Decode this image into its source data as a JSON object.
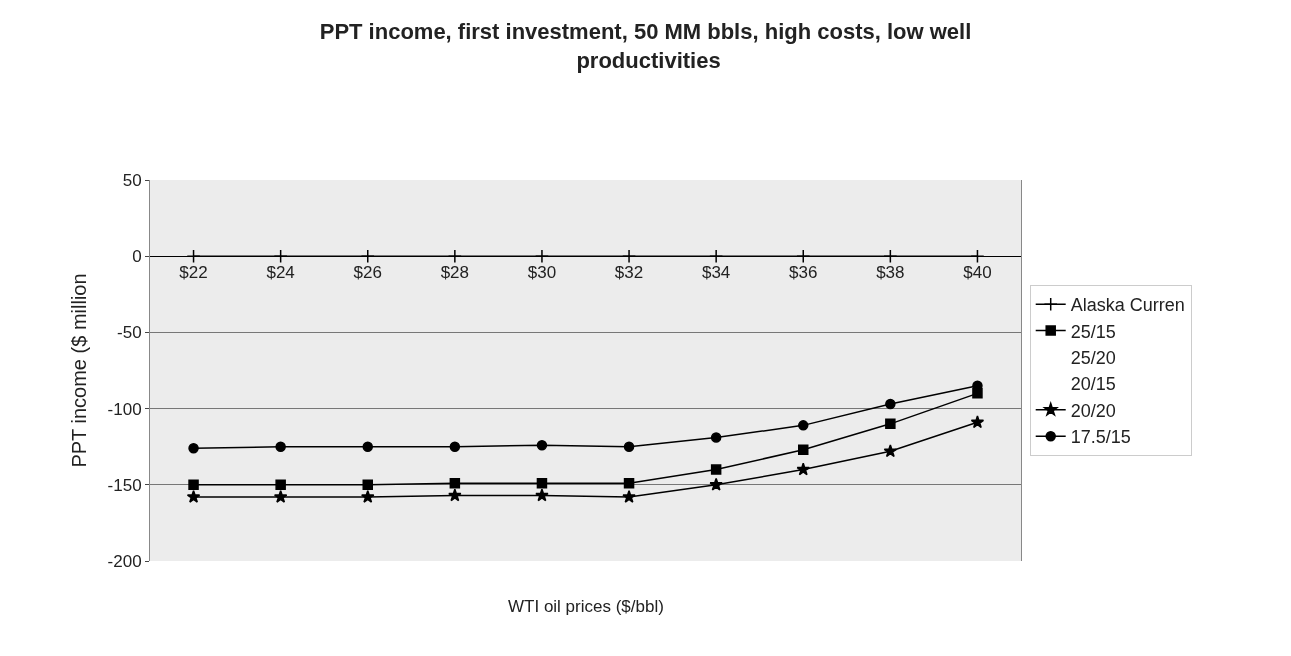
{
  "chart_data": {
    "type": "line",
    "title": "PPT income, first investment, 50 MM bbls, high costs, low well productivities",
    "xlabel": "WTI oil prices ($/bbl)",
    "ylabel": "PPT income ($ million",
    "categories": [
      "$22",
      "$24",
      "$26",
      "$28",
      "$30",
      "$32",
      "$34",
      "$36",
      "$38",
      "$40"
    ],
    "series": [
      {
        "name": "Alaska Curren",
        "color": "#000000",
        "marker": "cross",
        "values": [
          0,
          0,
          0,
          0,
          0,
          0,
          0,
          0,
          0,
          0
        ]
      },
      {
        "name": "25/15",
        "color": "#000000",
        "marker": "square",
        "values": [
          -150,
          -150,
          -150,
          -149,
          -149,
          -149,
          -140,
          -127,
          -110,
          -90
        ]
      },
      {
        "name": "25/20",
        "marker": "none",
        "values": [
          null,
          null,
          null,
          null,
          null,
          null,
          null,
          null,
          null,
          null
        ]
      },
      {
        "name": "20/15",
        "marker": "none",
        "values": [
          null,
          null,
          null,
          null,
          null,
          null,
          null,
          null,
          null,
          null
        ]
      },
      {
        "name": "20/20",
        "color": "#000000",
        "marker": "star",
        "values": [
          -158,
          -158,
          -158,
          -157,
          -157,
          -158,
          -150,
          -140,
          -128,
          -109
        ]
      },
      {
        "name": "17.5/15",
        "color": "#000000",
        "marker": "circle",
        "values": [
          -126,
          -125,
          -125,
          -125,
          -124,
          -125,
          -119,
          -111,
          -97,
          -85
        ]
      }
    ],
    "ylim": [
      -200,
      50
    ],
    "yticks": [
      -200,
      -150,
      -100,
      -50,
      0,
      50
    ],
    "grid": "y",
    "legend": "right"
  }
}
